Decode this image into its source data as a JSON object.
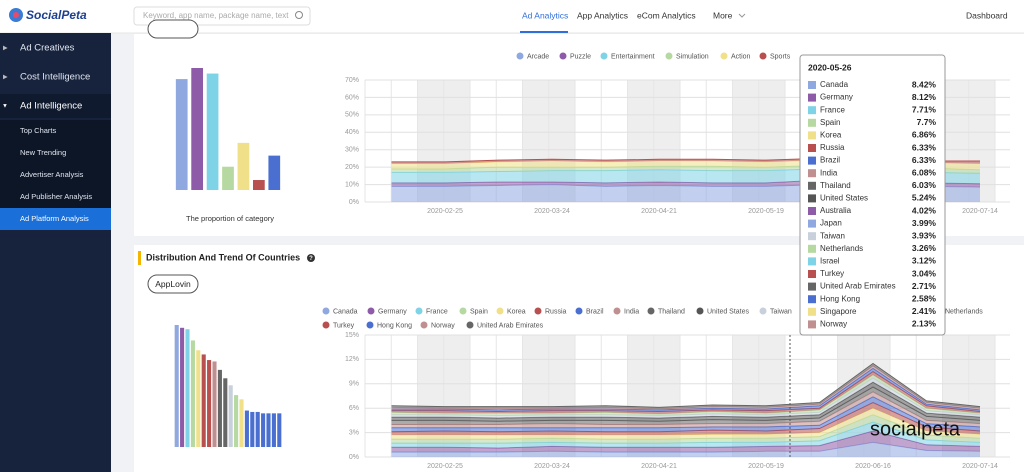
{
  "nav": {
    "logo": "SocialPeta",
    "search_placeholder": "Keyword, app name, package name, text",
    "links": [
      "Ad Analytics",
      "App Analytics",
      "eCom Analytics",
      "More"
    ],
    "dashboard": "Dashboard"
  },
  "sidebar": {
    "items": [
      "Ad Creatives",
      "Cost Intelligence",
      "Ad Intelligence"
    ],
    "subitems": [
      "Top Charts",
      "New Trending",
      "Advertiser Analysis",
      "Ad Publisher Analysis",
      "Ad Platform Analysis"
    ]
  },
  "section_title": "Distribution And Trend Of Countries",
  "app_button": "AppLovin",
  "watermark": "socialpeta",
  "tooltip": {
    "title": "2020-05-26",
    "rows": [
      [
        "Canada",
        "8.42%",
        "#8fa8e0"
      ],
      [
        "Germany",
        "8.12%",
        "#8e5ba8"
      ],
      [
        "France",
        "7.71%",
        "#7fd3e6"
      ],
      [
        "Spain",
        "7.7%",
        "#b5d9a0"
      ],
      [
        "Korea",
        "6.86%",
        "#f0e08a"
      ],
      [
        "Russia",
        "6.33%",
        "#b85050"
      ],
      [
        "Brazil",
        "6.33%",
        "#4a6fd0"
      ],
      [
        "India",
        "6.08%",
        "#c09090"
      ],
      [
        "Thailand",
        "6.03%",
        "#666666"
      ],
      [
        "United States",
        "5.24%",
        "#555555"
      ],
      [
        "Australia",
        "4.02%",
        "#8e5ba8"
      ],
      [
        "Japan",
        "3.99%",
        "#8fa8e0"
      ],
      [
        "Taiwan",
        "3.93%",
        "#c8d0dc"
      ],
      [
        "Netherlands",
        "3.26%",
        "#b5d9a0"
      ],
      [
        "Israel",
        "3.12%",
        "#7fd3e6"
      ],
      [
        "Turkey",
        "3.04%",
        "#b85050"
      ],
      [
        "United Arab Emirates",
        "2.71%",
        "#666666"
      ],
      [
        "Hong Kong",
        "2.58%",
        "#4a6fd0"
      ],
      [
        "Singapore",
        "2.41%",
        "#f0e08a"
      ],
      [
        "Norway",
        "2.13%",
        "#c09090"
      ]
    ]
  },
  "chart_data": [
    {
      "type": "bar",
      "xlabel": "The proportion of category",
      "values": [
        20,
        22,
        21,
        4.2,
        8.5,
        1.8,
        6.2
      ],
      "colors": [
        "#8fa8e0",
        "#8e5ba8",
        "#7fd3e6",
        "#b5d9a0",
        "#f0e08a",
        "#b85050",
        "#4a6fd0"
      ]
    },
    {
      "type": "area",
      "stacked": true,
      "grid": true,
      "categories": [
        null,
        "2020-02-25",
        null,
        "2020-03-24",
        null,
        "2020-04-21",
        null,
        "2020-05-19",
        null,
        "2020-06-16",
        null,
        "2020-07-14"
      ],
      "ylim": [
        0,
        70
      ],
      "yticks": [
        {
          "value": 0,
          "label": "0%"
        },
        {
          "value": 10,
          "label": "10%"
        },
        {
          "value": 20,
          "label": "20%"
        },
        {
          "value": 30,
          "label": "30%"
        },
        {
          "value": 40,
          "label": "40%"
        },
        {
          "value": 50,
          "label": "50%"
        },
        {
          "value": 60,
          "label": "60%"
        },
        {
          "value": 70,
          "label": "70%"
        }
      ],
      "series": [
        {
          "name": "Arcade",
          "color": "#8fa8e0",
          "values": [
            9,
            9,
            9.5,
            10,
            9,
            9.5,
            9,
            9,
            10,
            10.5,
            9,
            8.5
          ]
        },
        {
          "name": "Puzzle",
          "color": "#8e5ba8",
          "values": [
            2,
            2,
            2,
            1.5,
            2,
            2,
            2,
            2,
            2.5,
            3,
            2,
            2
          ]
        },
        {
          "name": "Entertainment",
          "color": "#7fd3e6",
          "values": [
            6,
            6,
            6,
            6.5,
            7,
            7,
            7,
            7,
            6.5,
            7,
            6,
            6
          ]
        },
        {
          "name": "Simulation",
          "color": "#b5d9a0",
          "values": [
            2,
            2,
            2.5,
            2,
            2,
            2,
            2.5,
            2,
            2,
            2,
            2.5,
            2
          ]
        },
        {
          "name": "Action",
          "color": "#f0e08a",
          "values": [
            3,
            3,
            3,
            3.5,
            3,
            3,
            3,
            3,
            3,
            3,
            3,
            3.5
          ]
        },
        {
          "name": "Sports",
          "color": "#b85050",
          "values": [
            1,
            1,
            1,
            1,
            1,
            1,
            1,
            1,
            1,
            1,
            1,
            1.5
          ]
        }
      ]
    },
    {
      "type": "bar",
      "values": [
        8.7,
        8.5,
        8.4,
        7.6,
        6.9,
        6.6,
        6.2,
        6.1,
        5.5,
        4.9,
        4.4,
        3.7,
        3.4,
        2.6,
        2.5,
        2.5,
        2.4,
        2.4,
        2.4,
        2.4
      ],
      "colors": [
        "#8fa8e0",
        "#8e5ba8",
        "#7fd3e6",
        "#b5d9a0",
        "#f0e08a",
        "#b85050",
        "#b85050",
        "#c09090",
        "#666666",
        "#666666",
        "#c8d0dc",
        "#b5d9a0",
        "#f0e08a",
        "#4a6fd0",
        "#4a6fd0",
        "#4a6fd0",
        "#4a6fd0",
        "#4a6fd0",
        "#4a6fd0",
        "#4a6fd0"
      ]
    },
    {
      "type": "area",
      "stacked": true,
      "grid": true,
      "categories": [
        null,
        "2020-02-25",
        null,
        "2020-03-24",
        null,
        "2020-04-21",
        null,
        "2020-05-19",
        null,
        "2020-06-16",
        null,
        "2020-07-14"
      ],
      "ylim": [
        0,
        15
      ],
      "yticks": [
        {
          "value": 0,
          "label": "0%"
        },
        {
          "value": 3,
          "label": "3%"
        },
        {
          "value": 6,
          "label": "6%"
        },
        {
          "value": 9,
          "label": "9%"
        },
        {
          "value": 12,
          "label": "12%"
        },
        {
          "value": 15,
          "label": "15%"
        }
      ],
      "series": [
        {
          "name": "Canada",
          "color": "#8fa8e0",
          "values": [
            0.6,
            0.6,
            0.6,
            0.7,
            0.6,
            0.6,
            0.6,
            0.7,
            0.7,
            1.8,
            0.8,
            0.7
          ]
        },
        {
          "name": "Germany",
          "color": "#8e5ba8",
          "values": [
            0.6,
            0.6,
            0.5,
            0.6,
            0.6,
            0.6,
            0.6,
            0.6,
            0.7,
            1.4,
            0.7,
            0.6
          ]
        },
        {
          "name": "France",
          "color": "#7fd3e6",
          "values": [
            0.5,
            0.5,
            0.6,
            0.5,
            0.5,
            0.5,
            0.6,
            0.5,
            0.6,
            1.1,
            0.6,
            0.5
          ]
        },
        {
          "name": "Spain",
          "color": "#b5d9a0",
          "values": [
            0.5,
            0.5,
            0.5,
            0.5,
            0.5,
            0.5,
            0.5,
            0.5,
            0.5,
            0.9,
            0.6,
            0.5
          ]
        },
        {
          "name": "Korea",
          "color": "#f0e08a",
          "values": [
            0.5,
            0.5,
            0.5,
            0.4,
            0.5,
            0.5,
            0.5,
            0.5,
            0.5,
            0.8,
            0.5,
            0.5
          ]
        },
        {
          "name": "Russia",
          "color": "#b85050",
          "values": [
            0.4,
            0.5,
            0.4,
            0.5,
            0.4,
            0.4,
            0.5,
            0.4,
            0.5,
            0.7,
            0.5,
            0.4
          ]
        },
        {
          "name": "Brazil",
          "color": "#4a6fd0",
          "values": [
            0.5,
            0.4,
            0.5,
            0.4,
            0.5,
            0.5,
            0.4,
            0.5,
            0.4,
            0.7,
            0.4,
            0.5
          ]
        },
        {
          "name": "India",
          "color": "#c09090",
          "values": [
            0.4,
            0.4,
            0.4,
            0.5,
            0.4,
            0.4,
            0.4,
            0.4,
            0.5,
            0.6,
            0.4,
            0.4
          ]
        },
        {
          "name": "Thailand",
          "color": "#666666",
          "values": [
            0.5,
            0.5,
            0.4,
            0.4,
            0.5,
            0.4,
            0.5,
            0.4,
            0.4,
            0.6,
            0.5,
            0.4
          ]
        },
        {
          "name": "United States",
          "color": "#555555",
          "values": [
            0.4,
            0.4,
            0.4,
            0.4,
            0.4,
            0.4,
            0.4,
            0.4,
            0.4,
            0.6,
            0.4,
            0.4
          ]
        },
        {
          "name": "Taiwan",
          "color": "#c8d0dc",
          "values": [
            0.3,
            0.3,
            0.3,
            0.3,
            0.3,
            0.3,
            0.3,
            0.3,
            0.3,
            0.5,
            0.3,
            0.3
          ]
        },
        {
          "name": "Netherlands",
          "color": "#b5d9a0",
          "values": [
            0.3,
            0.2,
            0.3,
            0.2,
            0.3,
            0.2,
            0.3,
            0.2,
            0.3,
            0.4,
            0.3,
            0.2
          ]
        },
        {
          "name": "Turkey",
          "color": "#b85050",
          "values": [
            0.2,
            0.3,
            0.2,
            0.3,
            0.2,
            0.3,
            0.2,
            0.3,
            0.2,
            0.4,
            0.3,
            0.2
          ]
        },
        {
          "name": "Hong Kong",
          "color": "#4a6fd0",
          "values": [
            0.2,
            0.2,
            0.2,
            0.2,
            0.2,
            0.2,
            0.2,
            0.2,
            0.3,
            0.4,
            0.2,
            0.2
          ]
        },
        {
          "name": "Norway",
          "color": "#c09090",
          "values": [
            0.2,
            0.1,
            0.2,
            0.1,
            0.2,
            0.1,
            0.2,
            0.2,
            0.2,
            0.3,
            0.2,
            0.2
          ]
        },
        {
          "name": "United Arab Emirates",
          "color": "#666666",
          "values": [
            0.2,
            0.2,
            0.2,
            0.2,
            0.2,
            0.2,
            0.2,
            0.2,
            0.2,
            0.3,
            0.2,
            0.2
          ]
        }
      ]
    }
  ]
}
